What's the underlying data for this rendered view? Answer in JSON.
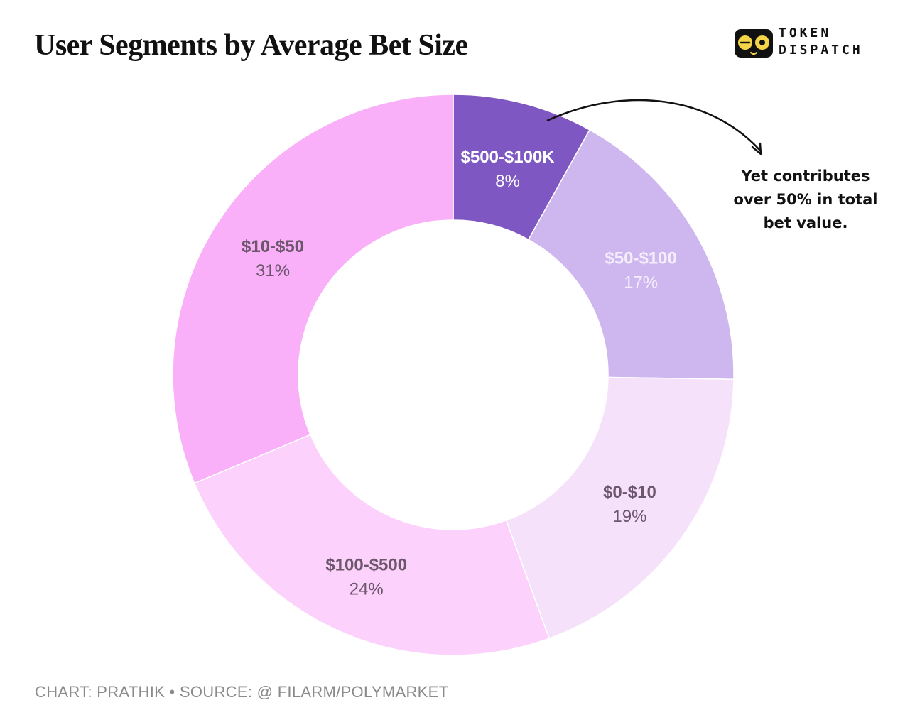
{
  "chart_data": {
    "type": "pie",
    "variant": "donut",
    "title": "User Segments by Average Bet Size",
    "start_category": "$500-$100K",
    "direction": "clockwise",
    "categories": [
      "$500-$100K",
      "$50-$100",
      "$0-$10",
      "$100-$500",
      "$10-$50"
    ],
    "values": [
      8,
      17,
      19,
      24,
      31
    ],
    "value_labels": [
      "8%",
      "17%",
      "19%",
      "24%",
      "31%"
    ],
    "colors": [
      "#7e57c2",
      "#ceb6ef",
      "#f6e1fa",
      "#fcd1fb",
      "#f9b0f8"
    ],
    "label_colors": [
      "#ffffff",
      "#f4edfc",
      "#6b566c",
      "#6b566c",
      "#6b566c"
    ],
    "annotation": {
      "target": "$500-$100K",
      "lines": [
        "Yet contributes",
        "over 50% in total",
        "bet value."
      ]
    }
  },
  "branding": {
    "line1": "TOKEN",
    "line2": "DISPATCH",
    "icon": "goggles-face-icon"
  },
  "footer": {
    "credit": "CHART: PRATHIK • SOURCE: @ FILARM/POLYMARKET"
  }
}
